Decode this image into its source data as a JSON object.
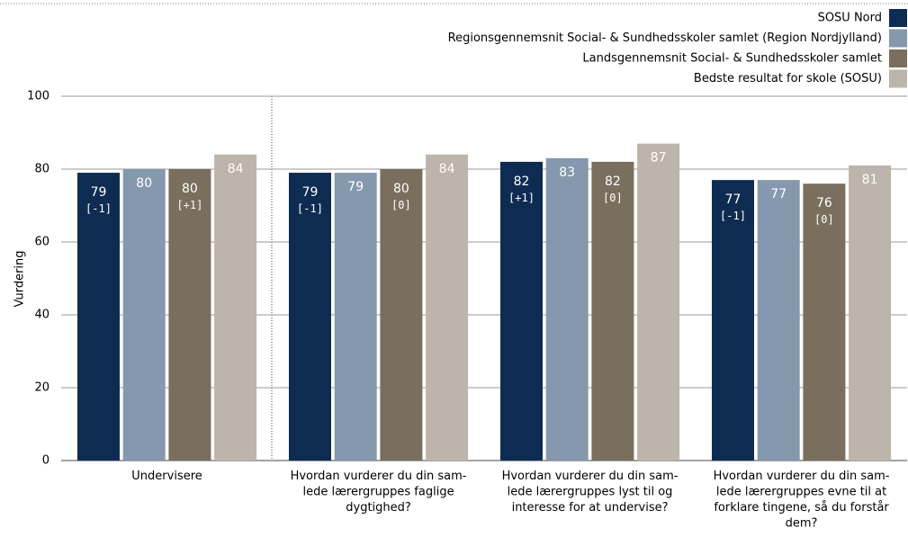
{
  "chart_data": {
    "type": "bar",
    "y_label": "Vurdering",
    "categories": [
      [
        "Undervisere"
      ],
      [
        "Hvordan vurderer du din sam-",
        "lede lærergruppes faglige",
        "dygtighed?"
      ],
      [
        "Hvordan vurderer du din sam-",
        "lede lærergruppes lyst til og",
        "interesse for at undervise?"
      ],
      [
        "Hvordan vurderer du din sam-",
        "lede lærergruppes evne til at",
        "forklare tingene, så du forstår",
        "dem?"
      ]
    ],
    "series": [
      {
        "name": "SOSU Nord",
        "color": "#0e2c52",
        "values": [
          79,
          79,
          82,
          77
        ],
        "changes": [
          "[-1]",
          "[-1]",
          "[+1]",
          "[-1]"
        ]
      },
      {
        "name": "Regionsgennemsnit Social- & Sundhedsskoler samlet (Region Nordjylland)",
        "color": "#8598ad",
        "values": [
          80,
          79,
          83,
          77
        ]
      },
      {
        "name": "Landsgennemsnit Social- & Sundhedsskoler samlet",
        "color": "#7a6e5e",
        "values": [
          80,
          80,
          82,
          76
        ],
        "changes": [
          "[+1]",
          "[0]",
          "[0]",
          "[0]"
        ]
      },
      {
        "name": "Bedste resultat for skole (SOSU)",
        "color": "#bdb4ab",
        "values": [
          84,
          84,
          87,
          81
        ]
      }
    ],
    "ylim": [
      0,
      100
    ],
    "yticks": [
      0,
      20,
      40,
      60,
      80,
      100
    ],
    "grid": true,
    "legend": "top-right"
  }
}
